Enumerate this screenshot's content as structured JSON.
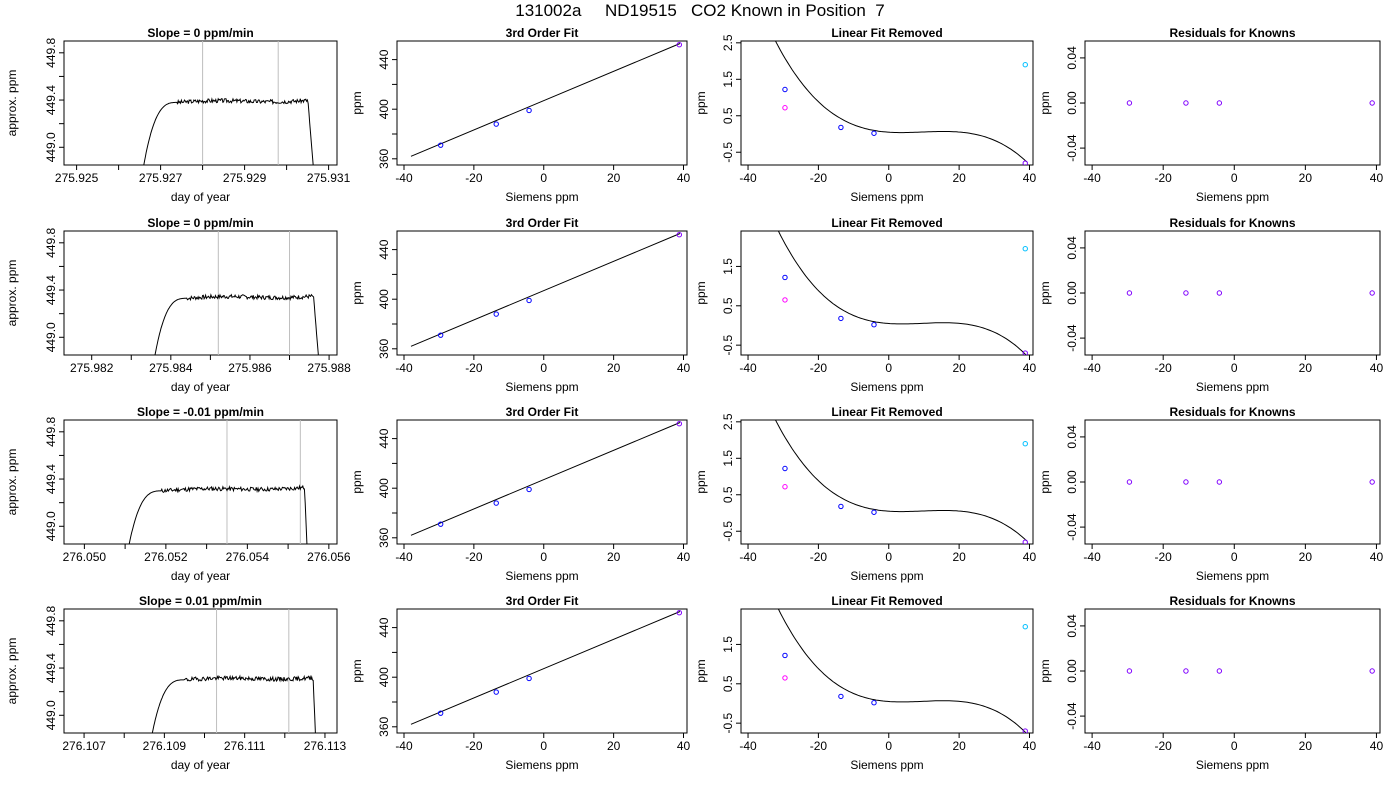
{
  "header": {
    "title": "131002a     ND19515   CO2 Known in Position  7"
  },
  "colors": {
    "data_line": "#000000",
    "marker_blue": "#0000ff",
    "marker_magenta": "#ff00ff",
    "marker_cyan": "#00bfff",
    "marker_purple": "#8000ff",
    "guide_line": "#bebebe",
    "fit_line": "#000000"
  },
  "chart_data": [
    {
      "type": "line",
      "title": "Slope =  0  ppm/min",
      "xlabel": "day of year",
      "ylabel": "approx. ppm",
      "xlim": [
        275.9247,
        275.9312
      ],
      "ylim": [
        448.85,
        449.9
      ],
      "xticks": [
        "275.925",
        "275.927",
        "275.929",
        "275.931"
      ],
      "xtick_values": [
        275.925,
        275.927,
        275.929,
        275.931
      ],
      "yticks": [
        "449.0",
        "449.4",
        "449.8"
      ],
      "ytick_values": [
        449.0,
        449.4,
        449.8
      ],
      "vlines": [
        275.928,
        275.9298
      ],
      "series": [
        {
          "t0": 275.9266,
          "t_plateau": 275.9274,
          "t_end": 275.9305,
          "t_drop": 275.9307,
          "level": 449.41,
          "drift": 0.02,
          "start": 448.85,
          "seed": 3
        }
      ]
    },
    {
      "type": "scatter",
      "title": "3rd Order Fit",
      "xlabel": "Siemens ppm",
      "ylabel": "ppm",
      "xlim": [
        -42,
        41
      ],
      "ylim": [
        355,
        455
      ],
      "xticks": [
        "-40",
        "-20",
        "0",
        "20",
        "40"
      ],
      "xtick_values": [
        -40,
        -20,
        0,
        20,
        40
      ],
      "yticks": [
        "360",
        "400",
        "440"
      ],
      "ytick_values": [
        360,
        400,
        440
      ],
      "fit_line": {
        "x": [
          -38,
          39
        ],
        "y": [
          362,
          453
        ]
      },
      "points": [
        {
          "x": -29.5,
          "y": 371,
          "color": "blue"
        },
        {
          "x": -13.6,
          "y": 388,
          "color": "blue"
        },
        {
          "x": -4.2,
          "y": 399,
          "color": "blue"
        },
        {
          "x": 38.8,
          "y": 452,
          "color": "purple"
        }
      ]
    },
    {
      "type": "scatter",
      "title": "Linear Fit Removed",
      "xlabel": "Siemens ppm",
      "ylabel": "ppm",
      "xlim": [
        -42,
        41
      ],
      "ylim": [
        -0.85,
        2.55
      ],
      "xticks": [
        "-40",
        "-20",
        "0",
        "20",
        "40"
      ],
      "xtick_values": [
        -40,
        -20,
        0,
        20,
        40
      ],
      "yticks": [
        "-0.5",
        "0.5",
        "1.5",
        "2.5"
      ],
      "ytick_values": [
        -0.5,
        0.5,
        1.5,
        2.5
      ],
      "curve": {
        "coefs": [
          0.05,
          -0.0063,
          0.00105,
          -3.62e-05
        ],
        "x_from": -38.5,
        "x_to": 39.2
      },
      "points": [
        {
          "x": -29.5,
          "y": 1.22,
          "color": "blue"
        },
        {
          "x": -29.5,
          "y": 0.72,
          "color": "magenta"
        },
        {
          "x": -13.6,
          "y": 0.18,
          "color": "blue"
        },
        {
          "x": -4.2,
          "y": 0.02,
          "color": "blue"
        },
        {
          "x": 38.8,
          "y": 1.9,
          "color": "cyan"
        },
        {
          "x": 38.8,
          "y": -0.8,
          "color": "purple"
        }
      ]
    },
    {
      "type": "scatter",
      "title": "Residuals for Knowns",
      "xlabel": "Siemens ppm",
      "ylabel": "ppm",
      "xlim": [
        -42,
        41
      ],
      "ylim": [
        -0.055,
        0.055
      ],
      "xticks": [
        "-40",
        "-20",
        "0",
        "20",
        "40"
      ],
      "xtick_values": [
        -40,
        -20,
        0,
        20,
        40
      ],
      "yticks": [
        "-0.04",
        "0.00",
        "0.04"
      ],
      "ytick_values": [
        -0.04,
        0.0,
        0.04
      ],
      "points": [
        {
          "x": -29.5,
          "y": 0.0,
          "color": "purple"
        },
        {
          "x": -13.6,
          "y": 0.0,
          "color": "purple"
        },
        {
          "x": -4.2,
          "y": 0.0,
          "color": "purple"
        },
        {
          "x": 38.8,
          "y": 0.0,
          "color": "purple"
        }
      ]
    },
    {
      "type": "line",
      "title": "Slope =  0  ppm/min",
      "xlabel": "day of year",
      "ylabel": "approx. ppm",
      "xlim": [
        275.9813,
        275.9882
      ],
      "ylim": [
        448.85,
        449.9
      ],
      "xticks": [
        "275.982",
        "275.984",
        "275.986",
        "275.988"
      ],
      "xtick_values": [
        275.982,
        275.984,
        275.986,
        275.988
      ],
      "yticks": [
        "449.0",
        "449.4",
        "449.8"
      ],
      "ytick_values": [
        449.0,
        449.4,
        449.8
      ],
      "vlines": [
        275.9852,
        275.987
      ],
      "series": [
        {
          "t0": 275.9836,
          "t_plateau": 275.9844,
          "t_end": 275.9876,
          "t_drop": 275.9878,
          "level": 449.36,
          "drift": 0.02,
          "start": 448.85,
          "seed": 7
        }
      ]
    },
    {
      "type": "scatter",
      "title": "3rd Order Fit",
      "xlabel": "Siemens ppm",
      "ylabel": "ppm",
      "xlim": [
        -42,
        41
      ],
      "ylim": [
        355,
        455
      ],
      "xticks": [
        "-40",
        "-20",
        "0",
        "20",
        "40"
      ],
      "xtick_values": [
        -40,
        -20,
        0,
        20,
        40
      ],
      "yticks": [
        "360",
        "400",
        "440"
      ],
      "ytick_values": [
        360,
        400,
        440
      ],
      "fit_line": {
        "x": [
          -38,
          39
        ],
        "y": [
          362,
          453
        ]
      },
      "points": [
        {
          "x": -29.5,
          "y": 371,
          "color": "blue"
        },
        {
          "x": -13.6,
          "y": 388,
          "color": "blue"
        },
        {
          "x": -4.2,
          "y": 399,
          "color": "blue"
        },
        {
          "x": 38.8,
          "y": 452,
          "color": "purple"
        }
      ]
    },
    {
      "type": "scatter",
      "title": "Linear Fit Removed",
      "xlabel": "Siemens ppm",
      "ylabel": "ppm",
      "xlim": [
        -42,
        41
      ],
      "ylim": [
        -0.75,
        2.4
      ],
      "xticks": [
        "-40",
        "-20",
        "0",
        "20",
        "40"
      ],
      "xtick_values": [
        -40,
        -20,
        0,
        20,
        40
      ],
      "yticks": [
        "-0.5",
        "0.5",
        "1.5"
      ],
      "ytick_values": [
        -0.5,
        0.5,
        1.5
      ],
      "curve": {
        "coefs": [
          0.05,
          -0.0063,
          0.00105,
          -3.62e-05
        ],
        "x_from": -38.5,
        "x_to": 39.2
      },
      "points": [
        {
          "x": -29.5,
          "y": 1.22,
          "color": "blue"
        },
        {
          "x": -29.5,
          "y": 0.65,
          "color": "magenta"
        },
        {
          "x": -13.6,
          "y": 0.18,
          "color": "blue"
        },
        {
          "x": -4.2,
          "y": 0.02,
          "color": "blue"
        },
        {
          "x": 38.8,
          "y": 1.95,
          "color": "cyan"
        },
        {
          "x": 38.8,
          "y": -0.7,
          "color": "purple"
        }
      ]
    },
    {
      "type": "scatter",
      "title": "Residuals for Knowns",
      "xlabel": "Siemens ppm",
      "ylabel": "ppm",
      "xlim": [
        -42,
        41
      ],
      "ylim": [
        -0.055,
        0.055
      ],
      "xticks": [
        "-40",
        "-20",
        "0",
        "20",
        "40"
      ],
      "xtick_values": [
        -40,
        -20,
        0,
        20,
        40
      ],
      "yticks": [
        "-0.04",
        "0.00",
        "0.04"
      ],
      "ytick_values": [
        -0.04,
        0.0,
        0.04
      ],
      "points": [
        {
          "x": -29.5,
          "y": 0.0,
          "color": "purple"
        },
        {
          "x": -13.6,
          "y": 0.0,
          "color": "purple"
        },
        {
          "x": -4.2,
          "y": 0.0,
          "color": "purple"
        },
        {
          "x": 38.8,
          "y": 0.0,
          "color": "purple"
        }
      ]
    },
    {
      "type": "line",
      "title": "Slope =  -0.01  ppm/min",
      "xlabel": "day of year",
      "ylabel": "approx. ppm",
      "xlim": [
        276.0495,
        276.0562
      ],
      "ylim": [
        448.85,
        449.9
      ],
      "xticks": [
        "276.050",
        "276.052",
        "276.054",
        "276.056"
      ],
      "xtick_values": [
        276.05,
        276.052,
        276.054,
        276.056
      ],
      "yticks": [
        "449.0",
        "449.4",
        "449.8"
      ],
      "ytick_values": [
        449.0,
        449.4,
        449.8
      ],
      "vlines": [
        276.0535,
        276.0553
      ],
      "series": [
        {
          "t0": 276.0511,
          "t_plateau": 276.0519,
          "t_end": 276.0554,
          "t_drop": 276.0555,
          "level": 449.33,
          "drift": 0.03,
          "start": 448.85,
          "seed": 11
        }
      ]
    },
    {
      "type": "scatter",
      "title": "3rd Order Fit",
      "xlabel": "Siemens ppm",
      "ylabel": "ppm",
      "xlim": [
        -42,
        41
      ],
      "ylim": [
        355,
        455
      ],
      "xticks": [
        "-40",
        "-20",
        "0",
        "20",
        "40"
      ],
      "xtick_values": [
        -40,
        -20,
        0,
        20,
        40
      ],
      "yticks": [
        "360",
        "400",
        "440"
      ],
      "ytick_values": [
        360,
        400,
        440
      ],
      "fit_line": {
        "x": [
          -38,
          39
        ],
        "y": [
          362,
          453
        ]
      },
      "points": [
        {
          "x": -29.5,
          "y": 371,
          "color": "blue"
        },
        {
          "x": -13.6,
          "y": 388,
          "color": "blue"
        },
        {
          "x": -4.2,
          "y": 399,
          "color": "blue"
        },
        {
          "x": 38.8,
          "y": 452,
          "color": "purple"
        }
      ]
    },
    {
      "type": "scatter",
      "title": "Linear Fit Removed",
      "xlabel": "Siemens ppm",
      "ylabel": "ppm",
      "xlim": [
        -42,
        41
      ],
      "ylim": [
        -0.85,
        2.55
      ],
      "xticks": [
        "-40",
        "-20",
        "0",
        "20",
        "40"
      ],
      "xtick_values": [
        -40,
        -20,
        0,
        20,
        40
      ],
      "yticks": [
        "-0.5",
        "0.5",
        "1.5",
        "2.5"
      ],
      "ytick_values": [
        -0.5,
        0.5,
        1.5,
        2.5
      ],
      "curve": {
        "coefs": [
          0.05,
          -0.0063,
          0.00105,
          -3.62e-05
        ],
        "x_from": -38.5,
        "x_to": 39.2
      },
      "points": [
        {
          "x": -29.5,
          "y": 1.22,
          "color": "blue"
        },
        {
          "x": -29.5,
          "y": 0.72,
          "color": "magenta"
        },
        {
          "x": -13.6,
          "y": 0.18,
          "color": "blue"
        },
        {
          "x": -4.2,
          "y": 0.02,
          "color": "blue"
        },
        {
          "x": 38.8,
          "y": 1.9,
          "color": "cyan"
        },
        {
          "x": 38.8,
          "y": -0.8,
          "color": "purple"
        }
      ]
    },
    {
      "type": "scatter",
      "title": "Residuals for Knowns",
      "xlabel": "Siemens ppm",
      "ylabel": "ppm",
      "xlim": [
        -42,
        41
      ],
      "ylim": [
        -0.055,
        0.055
      ],
      "xticks": [
        "-40",
        "-20",
        "0",
        "20",
        "40"
      ],
      "xtick_values": [
        -40,
        -20,
        0,
        20,
        40
      ],
      "yticks": [
        "-0.04",
        "0.00",
        "0.04"
      ],
      "ytick_values": [
        -0.04,
        0.0,
        0.04
      ],
      "points": [
        {
          "x": -29.5,
          "y": 0.0,
          "color": "purple"
        },
        {
          "x": -13.6,
          "y": 0.0,
          "color": "purple"
        },
        {
          "x": -4.2,
          "y": 0.0,
          "color": "purple"
        },
        {
          "x": 38.8,
          "y": 0.0,
          "color": "purple"
        }
      ]
    },
    {
      "type": "line",
      "title": "Slope =  0.01  ppm/min",
      "xlabel": "day of year",
      "ylabel": "approx. ppm",
      "xlim": [
        276.1065,
        276.1133
      ],
      "ylim": [
        448.85,
        449.9
      ],
      "xticks": [
        "276.107",
        "276.109",
        "276.111",
        "276.113"
      ],
      "xtick_values": [
        276.107,
        276.109,
        276.111,
        276.113
      ],
      "yticks": [
        "449.0",
        "449.4",
        "449.8"
      ],
      "ytick_values": [
        449.0,
        449.4,
        449.8
      ],
      "vlines": [
        276.1103,
        276.1121
      ],
      "series": [
        {
          "t0": 276.1087,
          "t_plateau": 276.1095,
          "t_end": 276.1127,
          "t_drop": 276.1128,
          "level": 449.33,
          "drift": 0.02,
          "start": 448.85,
          "seed": 19
        }
      ]
    },
    {
      "type": "scatter",
      "title": "3rd Order Fit",
      "xlabel": "Siemens ppm",
      "ylabel": "ppm",
      "xlim": [
        -42,
        41
      ],
      "ylim": [
        355,
        455
      ],
      "xticks": [
        "-40",
        "-20",
        "0",
        "20",
        "40"
      ],
      "xtick_values": [
        -40,
        -20,
        0,
        20,
        40
      ],
      "yticks": [
        "360",
        "400",
        "440"
      ],
      "ytick_values": [
        360,
        400,
        440
      ],
      "fit_line": {
        "x": [
          -38,
          39
        ],
        "y": [
          362,
          453
        ]
      },
      "points": [
        {
          "x": -29.5,
          "y": 371,
          "color": "blue"
        },
        {
          "x": -13.6,
          "y": 388,
          "color": "blue"
        },
        {
          "x": -4.2,
          "y": 399,
          "color": "blue"
        },
        {
          "x": 38.8,
          "y": 452,
          "color": "purple"
        }
      ]
    },
    {
      "type": "scatter",
      "title": "Linear Fit Removed",
      "xlabel": "Siemens ppm",
      "ylabel": "ppm",
      "xlim": [
        -42,
        41
      ],
      "ylim": [
        -0.75,
        2.4
      ],
      "xticks": [
        "-40",
        "-20",
        "0",
        "20",
        "40"
      ],
      "xtick_values": [
        -40,
        -20,
        0,
        20,
        40
      ],
      "yticks": [
        "-0.5",
        "0.5",
        "1.5"
      ],
      "ytick_values": [
        -0.5,
        0.5,
        1.5
      ],
      "curve": {
        "coefs": [
          0.05,
          -0.0063,
          0.00105,
          -3.62e-05
        ],
        "x_from": -38.5,
        "x_to": 39.2
      },
      "points": [
        {
          "x": -29.5,
          "y": 1.22,
          "color": "blue"
        },
        {
          "x": -29.5,
          "y": 0.65,
          "color": "magenta"
        },
        {
          "x": -13.6,
          "y": 0.18,
          "color": "blue"
        },
        {
          "x": -4.2,
          "y": 0.02,
          "color": "blue"
        },
        {
          "x": 38.8,
          "y": 1.95,
          "color": "cyan"
        },
        {
          "x": 38.8,
          "y": -0.7,
          "color": "purple"
        }
      ]
    },
    {
      "type": "scatter",
      "title": "Residuals for Knowns",
      "xlabel": "Siemens ppm",
      "ylabel": "ppm",
      "xlim": [
        -42,
        41
      ],
      "ylim": [
        -0.055,
        0.055
      ],
      "xticks": [
        "-40",
        "-20",
        "0",
        "20",
        "40"
      ],
      "xtick_values": [
        -40,
        -20,
        0,
        20,
        40
      ],
      "yticks": [
        "-0.04",
        "0.00",
        "0.04"
      ],
      "ytick_values": [
        -0.04,
        0.0,
        0.04
      ],
      "points": [
        {
          "x": -29.5,
          "y": 0.0,
          "color": "purple"
        },
        {
          "x": -13.6,
          "y": 0.0,
          "color": "purple"
        },
        {
          "x": -4.2,
          "y": 0.0,
          "color": "purple"
        },
        {
          "x": 38.8,
          "y": 0.0,
          "color": "purple"
        }
      ]
    }
  ]
}
